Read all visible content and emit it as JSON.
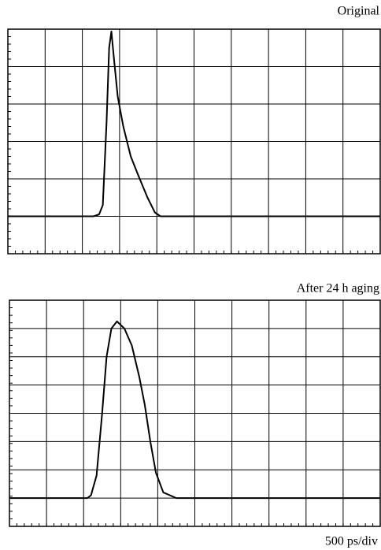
{
  "chart_data": [
    {
      "type": "line",
      "title": "Original",
      "x": [
        0,
        2.3,
        2.45,
        2.55,
        2.65,
        2.72,
        2.78,
        2.85,
        2.95,
        3.1,
        3.3,
        3.5,
        3.75,
        3.95,
        4.1,
        4.3,
        10
      ],
      "series": [
        {
          "color": "#000000",
          "values": [
            1,
            1,
            1.05,
            1.3,
            3.5,
            5.5,
            5.94,
            5.2,
            4.2,
            3.4,
            2.6,
            2.1,
            1.5,
            1.1,
            1.0,
            1.0,
            1.0
          ]
        }
      ],
      "xlim": [
        0,
        10
      ],
      "xticks": [
        0,
        1,
        2,
        3,
        4,
        5,
        6,
        7,
        8,
        9,
        10
      ],
      "ylim": [
        0,
        6
      ],
      "yticks": [
        0,
        1,
        2,
        3,
        4,
        5,
        6
      ],
      "grid": true
    },
    {
      "type": "line",
      "title": "After 24 h aging",
      "xlabel": "500 ps/div",
      "x": [
        0,
        2.1,
        2.2,
        2.35,
        2.5,
        2.62,
        2.75,
        2.9,
        3.1,
        3.3,
        3.5,
        3.65,
        3.8,
        3.95,
        4.15,
        4.5,
        10
      ],
      "series": [
        {
          "color": "#000000",
          "values": [
            1,
            1,
            1.1,
            1.8,
            4,
            6,
            7,
            7.25,
            7.0,
            6.4,
            5.3,
            4.3,
            3.0,
            1.9,
            1.2,
            1.0,
            1.0
          ]
        }
      ],
      "xlim": [
        0,
        10
      ],
      "xticks": [
        0,
        1,
        2,
        3,
        4,
        5,
        6,
        7,
        8,
        9,
        10
      ],
      "ylim": [
        0,
        8
      ],
      "yticks": [
        0,
        1,
        2,
        3,
        4,
        5,
        6,
        7,
        8
      ],
      "grid": true
    }
  ]
}
